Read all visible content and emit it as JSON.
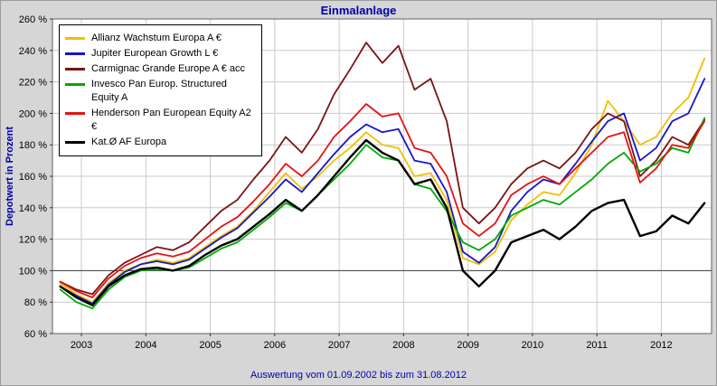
{
  "title": "Einmalanlage",
  "caption": "Auswertung vom 01.09.2002 bis zum 31.08.2012",
  "colors": {
    "title_text": "#0000a8",
    "grid": "#c9c9c9",
    "reference_line": "#404040",
    "plot_background": "#ffffff",
    "frame_background": "#d6d6d6",
    "axis_text": "#000000"
  },
  "chart_data": {
    "type": "line",
    "title": "Einmalanlage",
    "ylabel": "Depotwert in Prozent",
    "xlabel": "",
    "ylim": [
      60,
      260
    ],
    "xlim": [
      2002.55,
      2012.78
    ],
    "grid": true,
    "legend_position": "top-left",
    "reference_line": 100,
    "yticks": [
      "260 %",
      "240 %",
      "220 %",
      "200 %",
      "180 %",
      "160 %",
      "140 %",
      "120 %",
      "100 %",
      "80 %",
      "60 %"
    ],
    "xticks": [
      "2003",
      "2004",
      "2005",
      "2006",
      "2007",
      "2008",
      "2009",
      "2010",
      "2011",
      "2012"
    ],
    "x": [
      2002.67,
      2002.92,
      2003.17,
      2003.42,
      2003.67,
      2003.92,
      2004.17,
      2004.42,
      2004.67,
      2004.92,
      2005.17,
      2005.42,
      2005.67,
      2005.92,
      2006.17,
      2006.42,
      2006.67,
      2006.92,
      2007.17,
      2007.42,
      2007.67,
      2007.92,
      2008.17,
      2008.42,
      2008.67,
      2008.92,
      2009.17,
      2009.42,
      2009.67,
      2009.92,
      2010.17,
      2010.42,
      2010.67,
      2010.92,
      2011.17,
      2011.42,
      2011.67,
      2011.92,
      2012.17,
      2012.42,
      2012.67
    ],
    "series": [
      {
        "name": "Allianz Wachstum Europa A €",
        "color": "#f0c000",
        "line_width": 1.8,
        "values": [
          92,
          85,
          80,
          92,
          100,
          104,
          107,
          105,
          108,
          115,
          122,
          128,
          138,
          150,
          162,
          152,
          160,
          170,
          178,
          188,
          180,
          178,
          160,
          162,
          145,
          108,
          104,
          112,
          132,
          142,
          150,
          148,
          162,
          180,
          208,
          195,
          180,
          185,
          200,
          210,
          235
        ]
      },
      {
        "name": "Jupiter European Growth L €",
        "color": "#1616c8",
        "line_width": 1.8,
        "values": [
          90,
          84,
          79,
          91,
          99,
          104,
          106,
          104,
          107,
          114,
          121,
          127,
          137,
          147,
          158,
          150,
          162,
          174,
          185,
          193,
          188,
          190,
          170,
          168,
          150,
          112,
          105,
          115,
          138,
          150,
          158,
          155,
          168,
          182,
          195,
          200,
          170,
          178,
          195,
          200,
          222
        ]
      },
      {
        "name": "Carmignac Grande Europe A € acc",
        "color": "#7a1414",
        "line_width": 1.8,
        "values": [
          93,
          88,
          85,
          97,
          105,
          110,
          115,
          113,
          118,
          128,
          138,
          145,
          158,
          170,
          185,
          175,
          190,
          212,
          228,
          245,
          232,
          243,
          215,
          222,
          195,
          140,
          130,
          140,
          155,
          165,
          170,
          165,
          175,
          190,
          200,
          195,
          160,
          170,
          185,
          180,
          196
        ]
      },
      {
        "name": "Invesco Pan Europ. Structured Equity A",
        "color": "#00a800",
        "line_width": 1.8,
        "values": [
          88,
          80,
          76,
          88,
          96,
          100,
          101,
          100,
          102,
          108,
          114,
          118,
          126,
          134,
          143,
          138,
          148,
          158,
          168,
          180,
          172,
          170,
          155,
          152,
          138,
          118,
          113,
          120,
          135,
          140,
          145,
          142,
          150,
          158,
          168,
          175,
          163,
          168,
          178,
          175,
          197
        ]
      },
      {
        "name": "Henderson Pan European Equity A2 €",
        "color": "#e41212",
        "line_width": 1.8,
        "values": [
          93,
          87,
          83,
          95,
          103,
          108,
          111,
          109,
          112,
          120,
          128,
          134,
          144,
          155,
          168,
          160,
          170,
          185,
          195,
          206,
          198,
          200,
          178,
          175,
          160,
          130,
          122,
          130,
          148,
          155,
          160,
          155,
          165,
          175,
          185,
          188,
          156,
          165,
          180,
          178,
          195
        ]
      },
      {
        "name": "Kat.Ø AF Europa",
        "color": "#000000",
        "line_width": 2.4,
        "values": [
          90,
          83,
          78,
          90,
          97,
          101,
          102,
          100,
          103,
          110,
          116,
          120,
          128,
          136,
          145,
          138,
          148,
          160,
          172,
          183,
          175,
          170,
          155,
          158,
          140,
          100,
          90,
          100,
          118,
          122,
          126,
          120,
          128,
          138,
          143,
          145,
          122,
          125,
          135,
          130,
          143
        ]
      }
    ]
  }
}
